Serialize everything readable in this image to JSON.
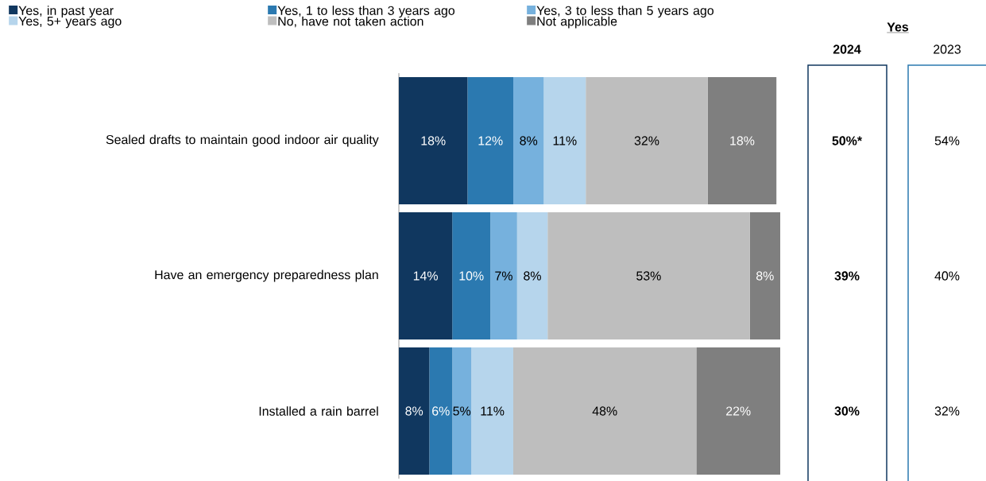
{
  "chart_data": {
    "type": "bar",
    "orientation": "horizontal",
    "stacked": true,
    "categories": [
      "Sealed drafts to maintain good indoor air quality",
      "Have an emergency preparedness plan",
      "Installed a rain barrel"
    ],
    "series": [
      {
        "name": "Yes, in past year",
        "color": "#10375f",
        "values": [
          18,
          14,
          8
        ],
        "value_labels": [
          "18%",
          "14%",
          "8%"
        ]
      },
      {
        "name": "Yes, 1 to less than 3 years ago",
        "color": "#2b79b0",
        "values": [
          12,
          10,
          6
        ],
        "value_labels": [
          "12%",
          "10%",
          "6%"
        ]
      },
      {
        "name": "Yes, 3 to less than 5 years ago",
        "color": "#76b1dd",
        "values": [
          8,
          7,
          5
        ],
        "value_labels": [
          "8%",
          "7%",
          "5%"
        ]
      },
      {
        "name": "Yes, 5+ years ago",
        "color": "#b6d5ec",
        "values": [
          11,
          8,
          11
        ],
        "value_labels": [
          "11%",
          "8%",
          "11%"
        ]
      },
      {
        "name": "No, have not taken action",
        "color": "#bebebe",
        "values": [
          32,
          53,
          48
        ],
        "value_labels": [
          "32%",
          "53%",
          "48%"
        ]
      },
      {
        "name": "Not applicable",
        "color": "#7f7f7f",
        "values": [
          18,
          8,
          22
        ],
        "value_labels": [
          "18%",
          "8%",
          "22%"
        ]
      }
    ],
    "xlim": [
      0,
      100
    ],
    "tick_labels": "y",
    "legend": "top",
    "annotations": [
      "Yes",
      "2024",
      "2023",
      "50%*",
      "54%",
      "39%",
      "40%",
      "30%",
      "32%"
    ]
  }
}
